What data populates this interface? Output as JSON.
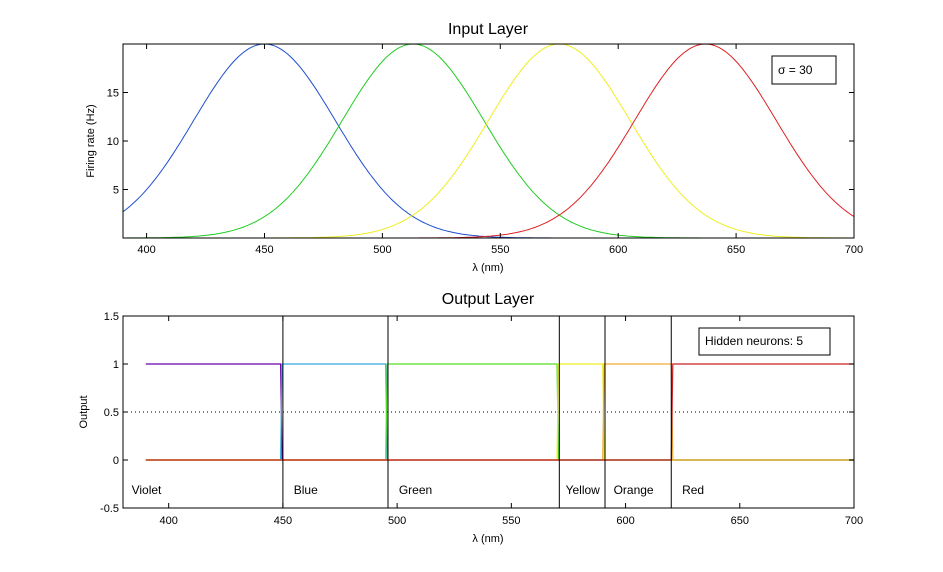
{
  "chart_data": [
    {
      "type": "line",
      "title": "Input Layer",
      "xlabel": "λ (nm)",
      "ylabel": "Firing rate (Hz)",
      "xlim": [
        390,
        700
      ],
      "ylim": [
        0,
        20
      ],
      "xticks": [
        400,
        450,
        500,
        550,
        600,
        650,
        700
      ],
      "yticks": [
        5,
        10,
        15
      ],
      "curve_shape": "gaussian",
      "sigma": 30,
      "peak": 20,
      "series": [
        {
          "color": "#1f4fd0",
          "center": 450
        },
        {
          "color": "#22cc22",
          "center": 513
        },
        {
          "color": "#eeee22",
          "center": 575
        },
        {
          "color": "#dd2222",
          "center": 637
        }
      ],
      "annotation": "σ = 30",
      "grid": false
    },
    {
      "type": "line",
      "title": "Output Layer",
      "xlabel": "λ (nm)",
      "ylabel": "Output",
      "xlim": [
        380,
        700
      ],
      "ylim": [
        -0.5,
        1.5
      ],
      "xticks": [
        400,
        450,
        500,
        550,
        600,
        650,
        700
      ],
      "yticks": [
        -0.5,
        0,
        0.5,
        1,
        1.5
      ],
      "ytick_labels": [
        "-0.5",
        "0",
        "0.5",
        "1",
        "1.5"
      ],
      "threshold": 0.5,
      "boundaries": [
        450,
        496,
        571,
        591,
        620
      ],
      "regions": [
        {
          "label": "Violet",
          "x": 382
        },
        {
          "label": "Blue",
          "x": 453
        },
        {
          "label": "Green",
          "x": 499
        },
        {
          "label": "Yellow",
          "x": 572
        },
        {
          "label": "Orange",
          "x": 593
        },
        {
          "label": "Red",
          "x": 623
        }
      ],
      "series": [
        {
          "color": "#6600aa",
          "start": 390,
          "end": 449
        },
        {
          "color": "#33aadd",
          "start": 449,
          "end": 495
        },
        {
          "color": "#55dd22",
          "start": 495,
          "end": 570
        },
        {
          "color": "#eeee22",
          "start": 570,
          "end": 590
        },
        {
          "color": "#eeaa33",
          "start": 590,
          "end": 620
        },
        {
          "color": "#cc2222",
          "start": 620,
          "end": 700
        }
      ],
      "annotation": "Hidden neurons: 5",
      "grid": false
    }
  ]
}
